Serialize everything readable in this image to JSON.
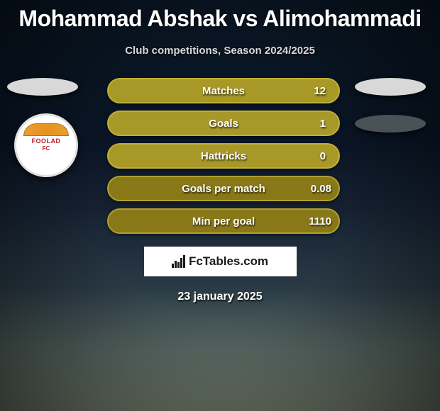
{
  "title": "Mohammad Abshak vs Alimohammadi",
  "subtitle": "Club competitions, Season 2024/2025",
  "club_logo": {
    "name": "FOOLAD",
    "suffix": "FC",
    "arch_colors": [
      "#e8a030",
      "#e89020"
    ],
    "text_color": "#c02030"
  },
  "stats": [
    {
      "label": "Matches",
      "value": "12",
      "fill": "#a89828",
      "border": "#c0b038"
    },
    {
      "label": "Goals",
      "value": "1",
      "fill": "#a89828",
      "border": "#c0b038"
    },
    {
      "label": "Hattricks",
      "value": "0",
      "fill": "#a89828",
      "border": "#c0b038"
    },
    {
      "label": "Goals per match",
      "value": "0.08",
      "fill": "#887818",
      "border": "#b0a030"
    },
    {
      "label": "Min per goal",
      "value": "1110",
      "fill": "#887818",
      "border": "#b0a030"
    }
  ],
  "branding": "FcTables.com",
  "date": "23 january 2025",
  "colors": {
    "badge_light": "#d8d8d8",
    "badge_dark": "#4a5258",
    "text": "#ffffff",
    "branding_bg": "#ffffff",
    "branding_text": "#1a1a1a"
  }
}
